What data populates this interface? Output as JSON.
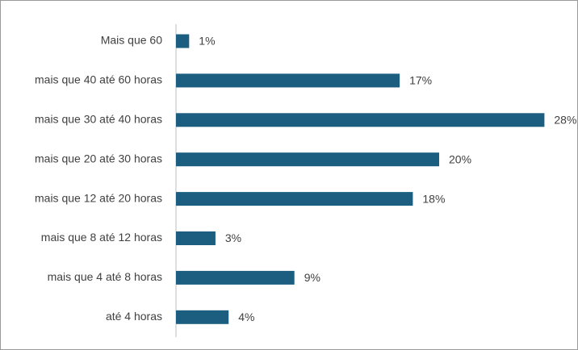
{
  "chart_data": {
    "type": "bar",
    "orientation": "horizontal",
    "categories": [
      "Mais que 60",
      "mais que 40 até 60 horas",
      "mais que 30 até 40 horas",
      "mais que 20 até 30 horas",
      "mais que 12 até 20 horas",
      "mais que 8 até 12 horas",
      "mais que 4 até 8 horas",
      "até 4 horas"
    ],
    "values": [
      1,
      17,
      28,
      20,
      18,
      3,
      9,
      4
    ],
    "value_labels": [
      "1%",
      "17%",
      "28%",
      "20%",
      "18%",
      "3%",
      "9%",
      "4%"
    ],
    "color": "#1b5e80"
  }
}
